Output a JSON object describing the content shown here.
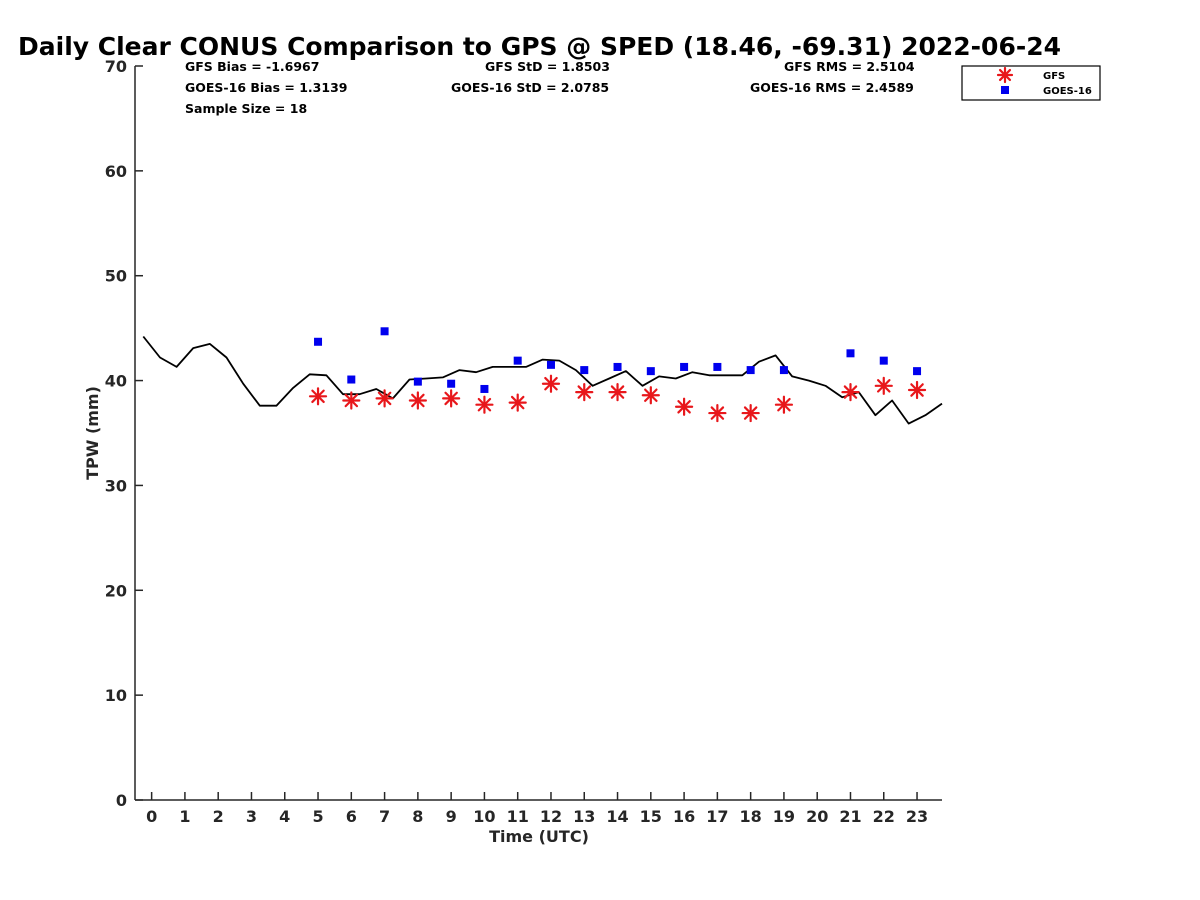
{
  "chart_data": {
    "type": "scatter",
    "title": "Daily Clear CONUS Comparison to GPS @ SPED (18.46, -69.31) 2022-06-24",
    "xlabel": "Time (UTC)",
    "ylabel": "TPW (mm)",
    "xlim": [
      -0.5,
      23.75
    ],
    "ylim": [
      0,
      70
    ],
    "xticks": [
      0,
      1,
      2,
      3,
      4,
      5,
      6,
      7,
      8,
      9,
      10,
      11,
      12,
      13,
      14,
      15,
      16,
      17,
      18,
      19,
      20,
      21,
      22,
      23
    ],
    "yticks": [
      0,
      10,
      20,
      30,
      40,
      50,
      60,
      70
    ],
    "grid": false,
    "legend_position": "top-right",
    "stats": [
      {
        "text": "GFS Bias = -1.6967"
      },
      {
        "text": "GFS StD = 1.8503"
      },
      {
        "text": "GFS RMS = 2.5104"
      },
      {
        "text": "GOES-16 Bias = 1.3139"
      },
      {
        "text": "GOES-16 StD = 2.0785"
      },
      {
        "text": "GOES-16 RMS = 2.4589"
      },
      {
        "text": "Sample Size = 18"
      }
    ],
    "gps_line": {
      "color": "#000000",
      "x": [
        -0.25,
        0.25,
        0.75,
        1.25,
        1.75,
        2.25,
        2.75,
        3.25,
        3.75,
        4.25,
        4.75,
        5.25,
        5.75,
        6.25,
        6.75,
        7.25,
        7.75,
        8.25,
        8.75,
        9.25,
        9.75,
        10.25,
        10.75,
        11.25,
        11.75,
        12.25,
        12.75,
        13.25,
        13.75,
        14.25,
        14.75,
        15.25,
        15.75,
        16.25,
        16.75,
        17.25,
        17.75,
        18.25,
        18.75,
        19.25,
        19.75,
        20.25,
        20.75,
        21.25,
        21.75,
        22.25,
        22.75,
        23.25,
        23.75
      ],
      "y": [
        44.2,
        42.2,
        41.3,
        43.1,
        43.5,
        42.2,
        39.7,
        37.6,
        37.6,
        39.3,
        40.6,
        40.5,
        38.7,
        38.7,
        39.2,
        38.3,
        40.1,
        40.2,
        40.3,
        41.0,
        40.8,
        41.3,
        41.3,
        41.3,
        42.0,
        41.9,
        41.0,
        39.5,
        40.2,
        40.9,
        39.5,
        40.4,
        40.2,
        40.8,
        40.5,
        40.5,
        40.5,
        41.8,
        42.4,
        40.4,
        40.0,
        39.5,
        38.4,
        38.9,
        36.7,
        38.1,
        35.9,
        36.7,
        37.8
      ]
    },
    "series": [
      {
        "name": "GFS",
        "marker": "asterisk",
        "color": "#e8171b",
        "x": [
          5,
          6,
          7,
          8,
          9,
          10,
          11,
          12,
          13,
          14,
          15,
          16,
          17,
          18,
          19,
          21,
          22,
          23
        ],
        "y": [
          38.5,
          38.1,
          38.3,
          38.1,
          38.3,
          37.7,
          37.9,
          39.7,
          38.9,
          38.9,
          38.6,
          37.5,
          36.9,
          36.9,
          37.7,
          38.9,
          39.5,
          39.1
        ]
      },
      {
        "name": "GOES-16",
        "marker": "square",
        "color": "#0000ee",
        "x": [
          5,
          6,
          7,
          8,
          9,
          10,
          11,
          12,
          13,
          14,
          15,
          16,
          17,
          18,
          19,
          21,
          22,
          23
        ],
        "y": [
          43.7,
          40.1,
          44.7,
          39.9,
          39.7,
          39.2,
          41.9,
          41.5,
          41.0,
          41.3,
          40.9,
          41.3,
          41.3,
          41.0,
          41.0,
          42.6,
          41.9,
          40.9
        ]
      }
    ]
  }
}
